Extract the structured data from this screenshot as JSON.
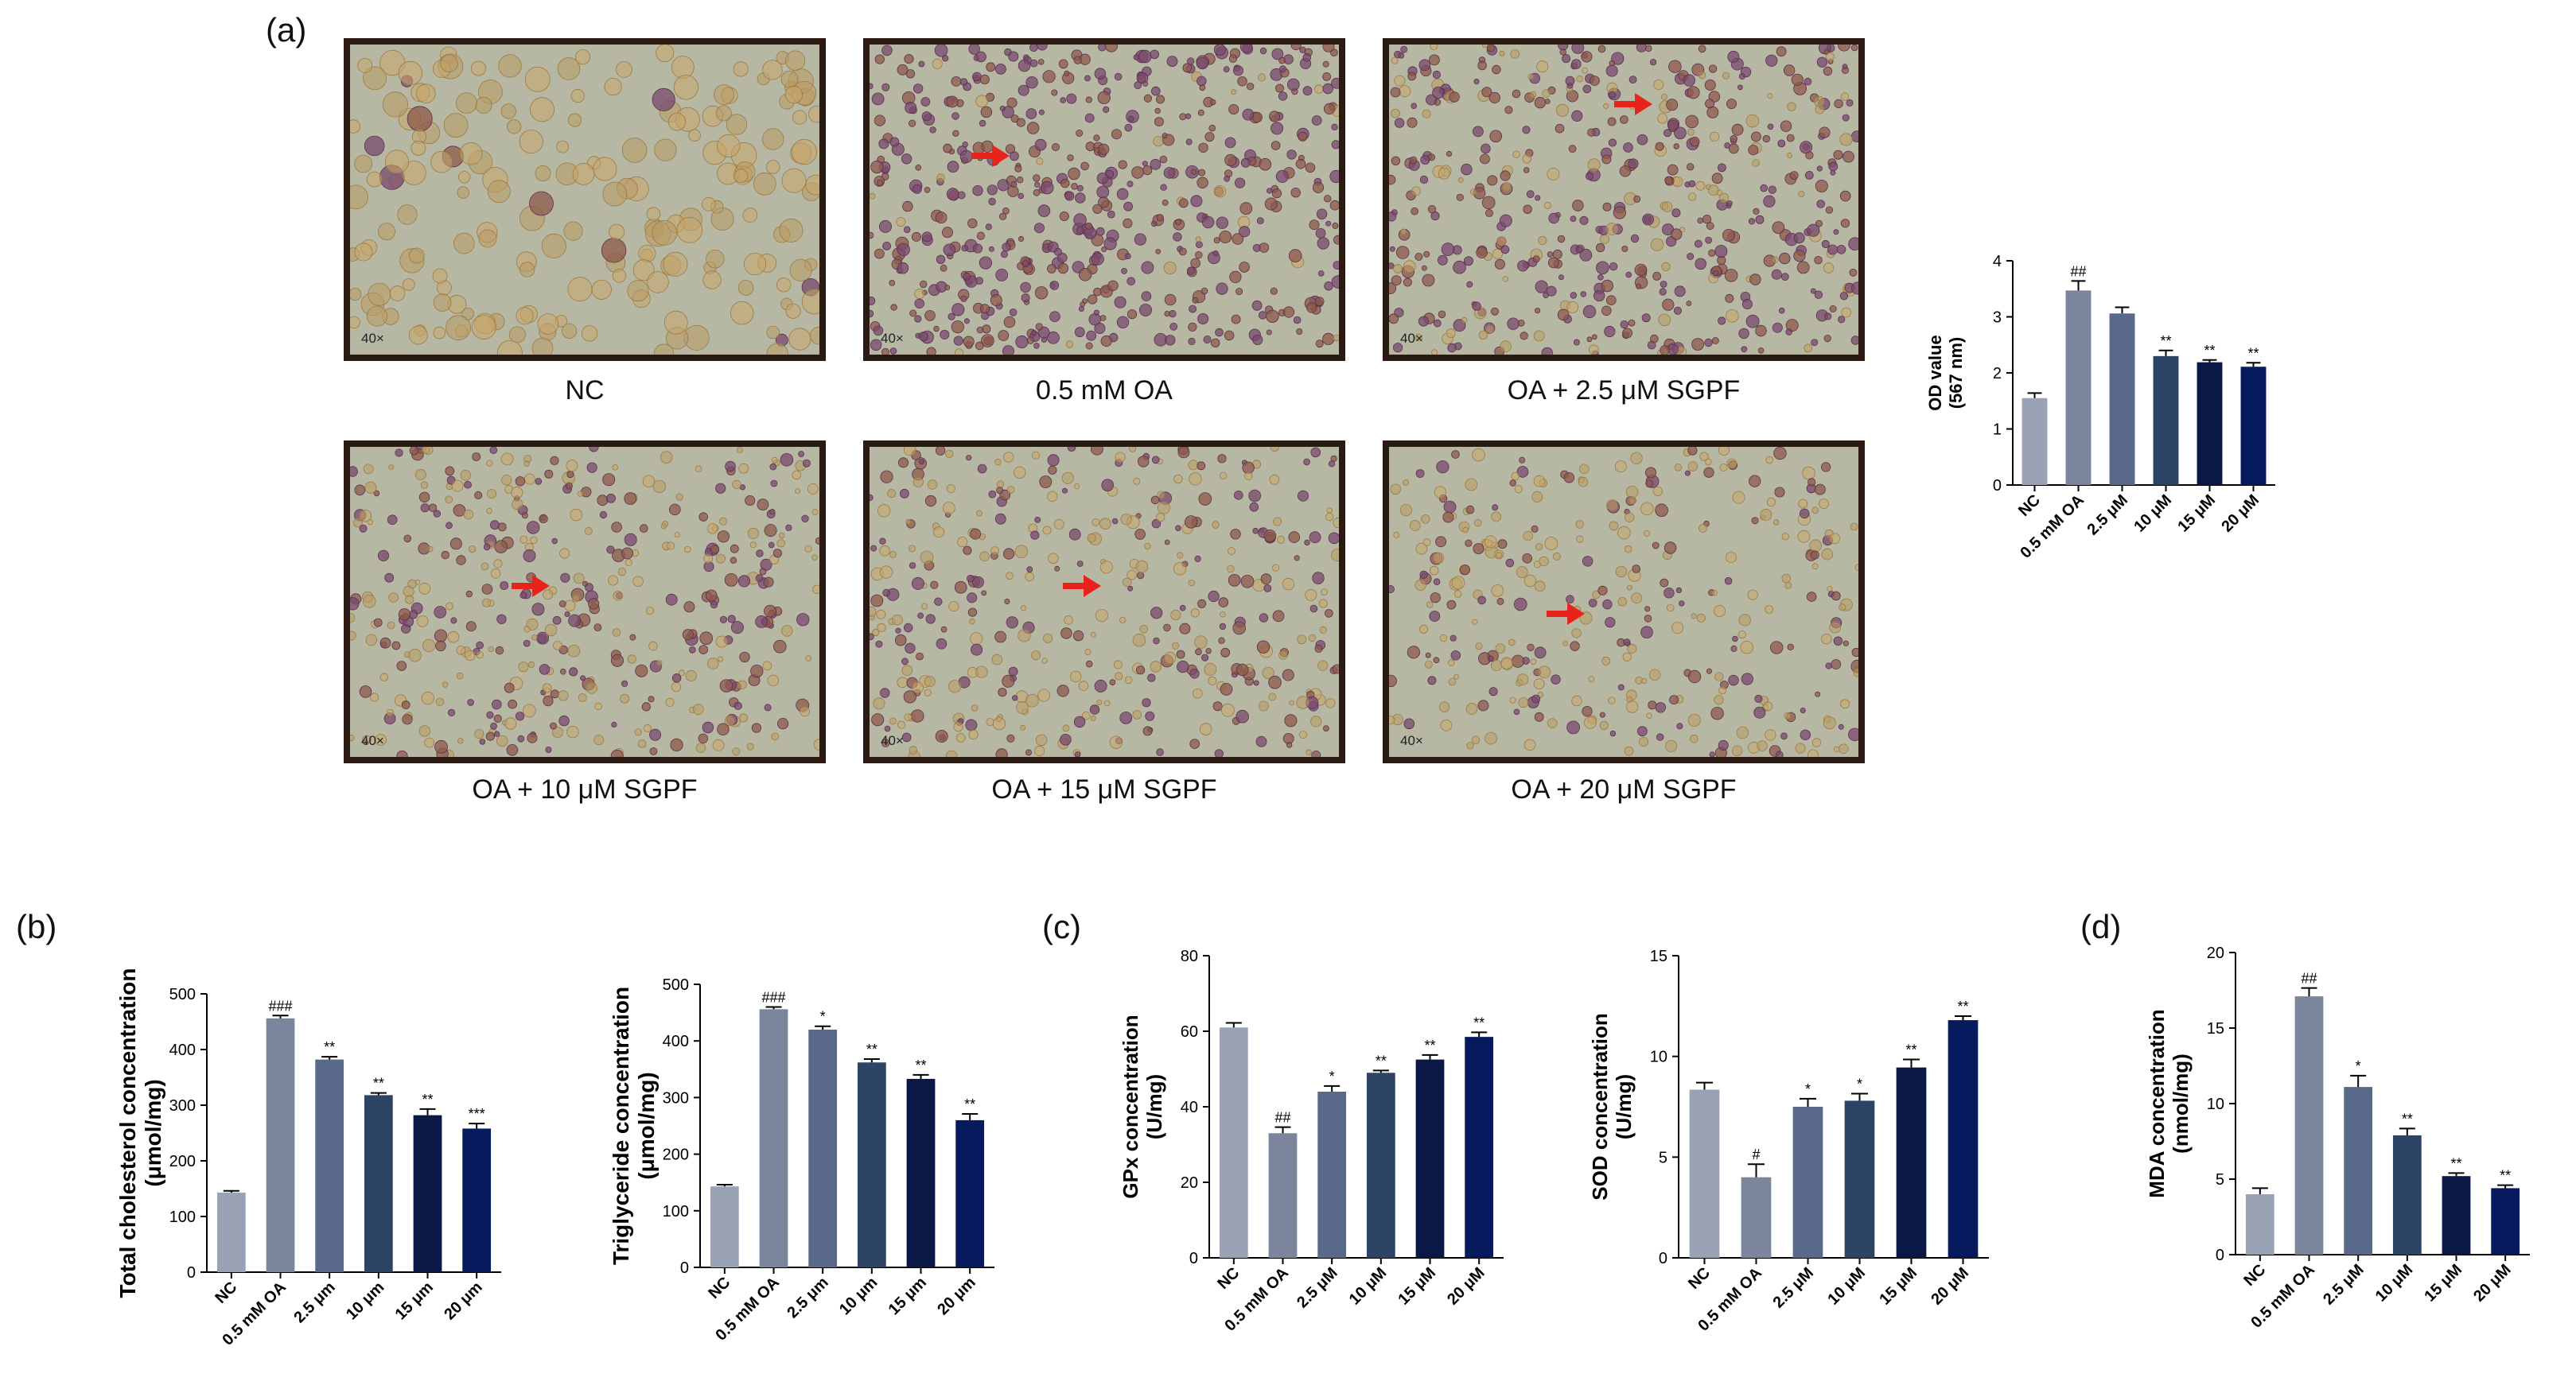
{
  "panels": {
    "a": "(a)",
    "b": "(b)",
    "c": "(c)",
    "d": "(d)"
  },
  "micrographs": [
    {
      "caption": "NC",
      "magnification": "40×",
      "stain_density": 0.05,
      "arrow": false
    },
    {
      "caption": "0.5 mM OA",
      "magnification": "40×",
      "stain_density": 0.95,
      "arrow": true
    },
    {
      "caption": "OA + 2.5 μM SGPF",
      "magnification": "40×",
      "stain_density": 0.8,
      "arrow": true
    },
    {
      "caption": "OA + 10 μM SGPF",
      "magnification": "40×",
      "stain_density": 0.6,
      "arrow": true
    },
    {
      "caption": "OA + 15 μM SGPF",
      "magnification": "40×",
      "stain_density": 0.55,
      "arrow": true
    },
    {
      "caption": "OA + 20 μM SGPF",
      "magnification": "40×",
      "stain_density": 0.4,
      "arrow": true
    }
  ],
  "colors": {
    "bars": [
      "#9aa2b6",
      "#7b859c",
      "#58698a",
      "#2d4466",
      "#0b1845",
      "#081a5e"
    ],
    "frame": "#2a1a12",
    "arrow": "#e8231b",
    "background_tissue": "#b7b8a4"
  },
  "chart_data": [
    {
      "id": "od",
      "type": "bar",
      "ylabel": [
        "OD value",
        "(567 nm)"
      ],
      "categories": [
        "NC",
        "0.5 mM OA",
        "2.5 μM",
        "10 μM",
        "15 μM",
        "20 μM"
      ],
      "values": [
        1.55,
        3.47,
        3.06,
        2.3,
        2.19,
        2.11
      ],
      "errors": [
        0.09,
        0.17,
        0.11,
        0.1,
        0.04,
        0.07
      ],
      "annotations": [
        "",
        "##",
        "",
        "**",
        "**",
        "**"
      ],
      "ylim": [
        0,
        4
      ],
      "yticks": [
        0,
        1,
        2,
        3,
        4
      ]
    },
    {
      "id": "tc",
      "type": "bar",
      "ylabel": [
        "Total cholesterol concentration",
        "(μmol/mg)"
      ],
      "categories": [
        "NC",
        "0.5 mM OA",
        "2.5 μm",
        "10 μm",
        "15 μm",
        "20 μm"
      ],
      "values": [
        143,
        456,
        382,
        318,
        282,
        258
      ],
      "errors": [
        3,
        5,
        5,
        4,
        11,
        9
      ],
      "annotations": [
        "",
        "###",
        "**",
        "**",
        "**",
        "***"
      ],
      "ylim": [
        0,
        500
      ],
      "yticks": [
        0,
        100,
        200,
        300,
        400,
        500
      ]
    },
    {
      "id": "tg",
      "type": "bar",
      "ylabel": [
        "Triglyceride concentration",
        "(μmol/mg)"
      ],
      "categories": [
        "NC",
        "0.5 mM OA",
        "2.5 μm",
        "10 μm",
        "15 μm",
        "20 μm"
      ],
      "values": [
        143,
        456,
        420,
        362,
        333,
        260
      ],
      "errors": [
        3,
        4,
        6,
        6,
        7,
        11
      ],
      "annotations": [
        "",
        "###",
        "*",
        "**",
        "**",
        "**"
      ],
      "ylim": [
        0,
        500
      ],
      "yticks": [
        0,
        100,
        200,
        300,
        400,
        500
      ]
    },
    {
      "id": "gpx",
      "type": "bar",
      "ylabel": [
        "GPx concentration",
        "(U/mg)"
      ],
      "categories": [
        "NC",
        "0.5 mM OA",
        "2.5 μM",
        "10 μM",
        "15 μM",
        "20 μM"
      ],
      "values": [
        61,
        33,
        44,
        49,
        52.5,
        58.5
      ],
      "errors": [
        1.2,
        1.6,
        1.5,
        0.6,
        1.2,
        1.2
      ],
      "annotations": [
        "",
        "##",
        "*",
        "**",
        "**",
        "**"
      ],
      "ylim": [
        0,
        80
      ],
      "yticks": [
        0,
        20,
        40,
        60,
        80
      ]
    },
    {
      "id": "sod",
      "type": "bar",
      "ylabel": [
        "SOD concentration",
        "(U/mg)"
      ],
      "categories": [
        "NC",
        "0.5 mM OA",
        "2.5 μM",
        "10 μM",
        "15 μM",
        "20 μM"
      ],
      "values": [
        8.35,
        4.0,
        7.5,
        7.8,
        9.45,
        11.8
      ],
      "errors": [
        0.35,
        0.65,
        0.4,
        0.35,
        0.4,
        0.2
      ],
      "annotations": [
        "",
        "#",
        "*",
        "*",
        "**",
        "**"
      ],
      "ylim": [
        0,
        15
      ],
      "yticks": [
        0,
        5,
        10,
        15
      ]
    },
    {
      "id": "mda",
      "type": "bar",
      "ylabel": [
        "MDA concentration",
        "(nmol/mg)"
      ],
      "categories": [
        "NC",
        "0.5 mM OA",
        "2.5 μM",
        "10 μM",
        "15 μM",
        "20 μM"
      ],
      "values": [
        4.0,
        17.1,
        11.1,
        7.9,
        5.2,
        4.4
      ],
      "errors": [
        0.4,
        0.55,
        0.75,
        0.45,
        0.2,
        0.2
      ],
      "annotations": [
        "",
        "##",
        "*",
        "**",
        "**",
        "**"
      ],
      "ylim": [
        0,
        20
      ],
      "yticks": [
        0,
        5,
        10,
        15,
        20
      ]
    }
  ]
}
